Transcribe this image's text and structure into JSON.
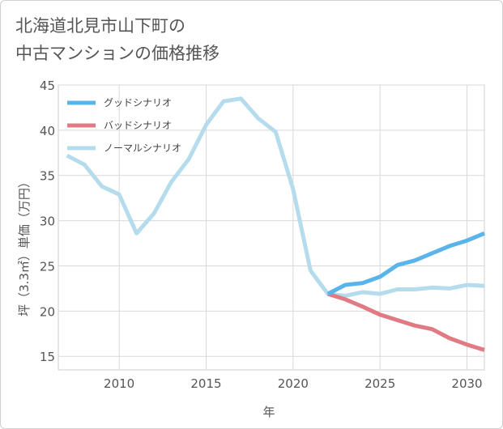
{
  "title_lines": [
    "北海道北見市山下町の",
    "中古マンションの価格推移"
  ],
  "chart_data": {
    "type": "line",
    "xlabel": "年",
    "ylabel": "坪（3.3㎡）単価（万円）",
    "xlim": [
      2006.5,
      2031
    ],
    "ylim": [
      13.5,
      45
    ],
    "x_ticks": [
      2010,
      2015,
      2020,
      2025,
      2030
    ],
    "y_ticks": [
      15,
      20,
      25,
      30,
      35,
      40,
      45
    ],
    "grid": true,
    "legend_position": "top-left",
    "series": [
      {
        "name": "グッドシナリオ",
        "color": "#5ab4ec",
        "points": [
          [
            2022,
            21.9
          ],
          [
            2023,
            22.9
          ],
          [
            2024,
            23.1
          ],
          [
            2025,
            23.8
          ],
          [
            2026,
            25.1
          ],
          [
            2027,
            25.6
          ],
          [
            2028,
            26.4
          ],
          [
            2029,
            27.2
          ],
          [
            2030,
            27.8
          ],
          [
            2031,
            28.6
          ]
        ]
      },
      {
        "name": "バッドシナリオ",
        "color": "#e07b84",
        "points": [
          [
            2022,
            21.9
          ],
          [
            2023,
            21.3
          ],
          [
            2024,
            20.5
          ],
          [
            2025,
            19.6
          ],
          [
            2026,
            19.0
          ],
          [
            2027,
            18.4
          ],
          [
            2028,
            18.0
          ],
          [
            2029,
            17.0
          ],
          [
            2030,
            16.3
          ],
          [
            2031,
            15.7
          ]
        ]
      },
      {
        "name": "ノーマルシナリオ",
        "color": "#b5dcec",
        "points": [
          [
            2007,
            37.2
          ],
          [
            2008,
            36.2
          ],
          [
            2009,
            33.8
          ],
          [
            2010,
            32.9
          ],
          [
            2011,
            28.6
          ],
          [
            2012,
            30.8
          ],
          [
            2013,
            34.3
          ],
          [
            2014,
            36.8
          ],
          [
            2015,
            40.6
          ],
          [
            2016,
            43.2
          ],
          [
            2017,
            43.5
          ],
          [
            2018,
            41.3
          ],
          [
            2019,
            39.8
          ],
          [
            2020,
            33.5
          ],
          [
            2021,
            24.5
          ],
          [
            2022,
            21.9
          ],
          [
            2023,
            21.7
          ],
          [
            2024,
            22.1
          ],
          [
            2025,
            21.9
          ],
          [
            2026,
            22.4
          ],
          [
            2027,
            22.4
          ],
          [
            2028,
            22.6
          ],
          [
            2029,
            22.5
          ],
          [
            2030,
            22.9
          ],
          [
            2031,
            22.8
          ]
        ]
      }
    ]
  }
}
